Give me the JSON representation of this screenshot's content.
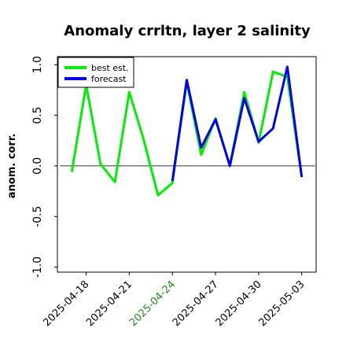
{
  "chart_data": {
    "type": "line",
    "title": "Anomaly crrltn, layer 2 salinity",
    "xlabel": "",
    "ylabel": "anom. corr.",
    "ylim": [
      -1.05,
      1.08
    ],
    "yticks": [
      "1.0",
      "0.5",
      "0.0",
      "-0.5",
      "-1.0"
    ],
    "ytick_values": [
      1.0,
      0.5,
      0.0,
      -0.5,
      -1.0
    ],
    "x": [
      "2025-04-17",
      "2025-04-18",
      "2025-04-19",
      "2025-04-20",
      "2025-04-21",
      "2025-04-22",
      "2025-04-23",
      "2025-04-24",
      "2025-04-25",
      "2025-04-26",
      "2025-04-27",
      "2025-04-28",
      "2025-04-29",
      "2025-04-30",
      "2025-05-01",
      "2025-05-02",
      "2025-05-03"
    ],
    "xlim": [
      "2025-04-16",
      "2025-05-04"
    ],
    "xticks": [
      "2025-04-18",
      "2025-04-21",
      "2025-04-24",
      "2025-04-27",
      "2025-04-30",
      "2025-05-03"
    ],
    "highlight_tick": "2025-04-24",
    "highlight_color": "#228B22",
    "zero_line": true,
    "legend_position": "top-left",
    "series": [
      {
        "name": "best est.",
        "color": "#00ee00",
        "values": [
          -0.06,
          0.8,
          0.02,
          -0.16,
          0.73,
          0.26,
          -0.29,
          -0.17,
          0.83,
          0.11,
          0.47,
          0.0,
          0.73,
          0.23,
          0.93,
          0.88,
          -0.11
        ]
      },
      {
        "name": "forecast",
        "color": "#0000ee",
        "values": [
          null,
          null,
          null,
          null,
          null,
          null,
          null,
          -0.15,
          0.85,
          0.18,
          0.46,
          0.0,
          0.67,
          0.24,
          0.37,
          0.98,
          -0.11
        ]
      }
    ]
  }
}
